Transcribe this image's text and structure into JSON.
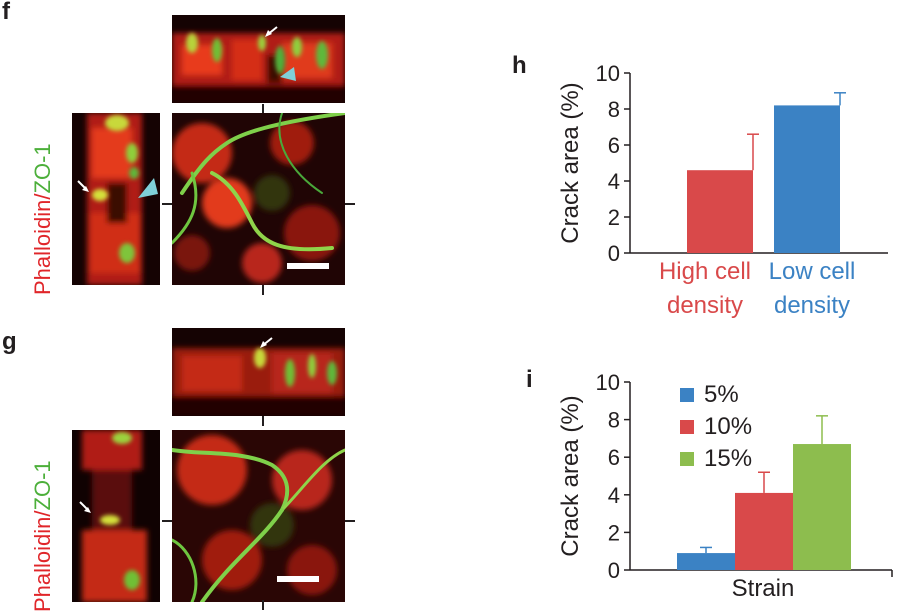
{
  "panels": {
    "f": {
      "letter": "f",
      "label_part1": "Phalloidin",
      "label_sep": "/",
      "label_part2": "ZO-1"
    },
    "g": {
      "letter": "g",
      "label_part1": "Phalloidin",
      "label_sep": "/",
      "label_part2": "ZO-1"
    },
    "h": {
      "letter": "h"
    },
    "i": {
      "letter": "i"
    }
  },
  "colors": {
    "red_stain": "#e0262a",
    "green_stain": "#4caf3a",
    "bar_red": "#d9494a",
    "bar_blue": "#3b82c4",
    "bar_green": "#8dbd4e",
    "arrowhead_cyan": "#7fd0d8"
  },
  "chart_data": [
    {
      "type": "bar",
      "panel": "h",
      "ylabel": "Crack area (%)",
      "ylim": [
        0,
        10
      ],
      "yticks": [
        "0",
        "2",
        "4",
        "6",
        "8",
        "10"
      ],
      "categories": [
        "High cell density",
        "Low cell density"
      ],
      "category_lines": [
        [
          "High cell",
          "density"
        ],
        [
          "Low cell",
          "density"
        ]
      ],
      "category_colors": [
        "#d9494a",
        "#3b82c4"
      ],
      "values": [
        4.6,
        8.2
      ],
      "errors": [
        2.0,
        0.7
      ]
    },
    {
      "type": "bar",
      "panel": "i",
      "ylabel": "Crack area (%)",
      "xlabel": "Strain",
      "ylim": [
        0,
        10
      ],
      "yticks": [
        "0",
        "2",
        "4",
        "6",
        "8",
        "10"
      ],
      "legend_position": "top-left",
      "series": [
        {
          "name": "5%",
          "value": 0.9,
          "error": 0.3,
          "color": "#3b82c4"
        },
        {
          "name": "10%",
          "value": 4.1,
          "error": 1.1,
          "color": "#d9494a"
        },
        {
          "name": "15%",
          "value": 6.7,
          "error": 1.5,
          "color": "#8dbd4e"
        }
      ]
    }
  ]
}
